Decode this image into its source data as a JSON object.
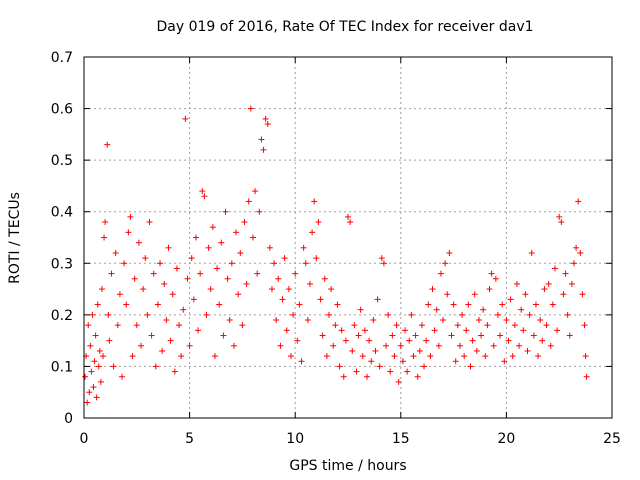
{
  "chart_data": {
    "type": "scatter",
    "title": "Day 019 of 2016, Rate Of TEC Index for receiver dav1",
    "xlabel": "GPS time / hours",
    "ylabel": "ROTI / TECUs",
    "xlim": [
      0,
      25
    ],
    "ylim": [
      0,
      0.7
    ],
    "xticks": [
      0,
      5,
      10,
      15,
      20,
      25
    ],
    "xtick_labels": [
      "0",
      "5",
      "10",
      "15",
      "20",
      "25"
    ],
    "yticks": [
      0,
      0.1,
      0.2,
      0.3,
      0.4,
      0.5,
      0.6,
      0.7
    ],
    "ytick_labels": [
      "0",
      "0.1",
      "0.2",
      "0.3",
      "0.4",
      "0.5",
      "0.6",
      "0.7"
    ],
    "grid": true,
    "marker": "plus",
    "marker_color": "#ff0000",
    "series": [
      {
        "name": "ROTI",
        "points": [
          [
            0.05,
            0.08
          ],
          [
            0.1,
            0.12
          ],
          [
            0.15,
            0.03
          ],
          [
            0.2,
            0.18
          ],
          [
            0.25,
            0.05
          ],
          [
            0.3,
            0.14
          ],
          [
            0.35,
            0.09
          ],
          [
            0.4,
            0.2
          ],
          [
            0.45,
            0.06
          ],
          [
            0.5,
            0.11
          ],
          [
            0.55,
            0.16
          ],
          [
            0.6,
            0.04
          ],
          [
            0.65,
            0.22
          ],
          [
            0.7,
            0.1
          ],
          [
            0.75,
            0.13
          ],
          [
            0.8,
            0.07
          ],
          [
            0.85,
            0.25
          ],
          [
            0.9,
            0.12
          ],
          [
            0.95,
            0.35
          ],
          [
            1.0,
            0.38
          ],
          [
            1.1,
            0.53
          ],
          [
            1.15,
            0.2
          ],
          [
            1.2,
            0.15
          ],
          [
            1.3,
            0.28
          ],
          [
            1.4,
            0.1
          ],
          [
            1.5,
            0.32
          ],
          [
            1.6,
            0.18
          ],
          [
            1.7,
            0.24
          ],
          [
            1.8,
            0.08
          ],
          [
            1.9,
            0.3
          ],
          [
            2.0,
            0.22
          ],
          [
            2.1,
            0.36
          ],
          [
            2.2,
            0.39
          ],
          [
            2.3,
            0.12
          ],
          [
            2.4,
            0.27
          ],
          [
            2.5,
            0.18
          ],
          [
            2.6,
            0.34
          ],
          [
            2.7,
            0.14
          ],
          [
            2.8,
            0.25
          ],
          [
            2.9,
            0.31
          ],
          [
            3.0,
            0.2
          ],
          [
            3.1,
            0.38
          ],
          [
            3.2,
            0.16
          ],
          [
            3.3,
            0.28
          ],
          [
            3.4,
            0.1
          ],
          [
            3.5,
            0.22
          ],
          [
            3.6,
            0.3
          ],
          [
            3.7,
            0.13
          ],
          [
            3.8,
            0.26
          ],
          [
            3.9,
            0.19
          ],
          [
            4.0,
            0.33
          ],
          [
            4.1,
            0.15
          ],
          [
            4.2,
            0.24
          ],
          [
            4.3,
            0.09
          ],
          [
            4.4,
            0.29
          ],
          [
            4.5,
            0.18
          ],
          [
            4.6,
            0.12
          ],
          [
            4.7,
            0.21
          ],
          [
            4.8,
            0.58
          ],
          [
            4.9,
            0.27
          ],
          [
            5.0,
            0.14
          ],
          [
            5.1,
            0.31
          ],
          [
            5.2,
            0.23
          ],
          [
            5.3,
            0.35
          ],
          [
            5.4,
            0.17
          ],
          [
            5.5,
            0.28
          ],
          [
            5.6,
            0.44
          ],
          [
            5.7,
            0.43
          ],
          [
            5.8,
            0.2
          ],
          [
            5.9,
            0.33
          ],
          [
            6.0,
            0.25
          ],
          [
            6.1,
            0.37
          ],
          [
            6.2,
            0.12
          ],
          [
            6.3,
            0.29
          ],
          [
            6.4,
            0.22
          ],
          [
            6.5,
            0.34
          ],
          [
            6.6,
            0.16
          ],
          [
            6.7,
            0.4
          ],
          [
            6.8,
            0.27
          ],
          [
            6.9,
            0.19
          ],
          [
            7.0,
            0.3
          ],
          [
            7.1,
            0.14
          ],
          [
            7.2,
            0.36
          ],
          [
            7.3,
            0.24
          ],
          [
            7.4,
            0.32
          ],
          [
            7.5,
            0.18
          ],
          [
            7.6,
            0.38
          ],
          [
            7.7,
            0.26
          ],
          [
            7.8,
            0.42
          ],
          [
            7.9,
            0.6
          ],
          [
            8.0,
            0.35
          ],
          [
            8.1,
            0.44
          ],
          [
            8.2,
            0.28
          ],
          [
            8.3,
            0.4
          ],
          [
            8.4,
            0.54
          ],
          [
            8.5,
            0.52
          ],
          [
            8.6,
            0.58
          ],
          [
            8.7,
            0.57
          ],
          [
            8.8,
            0.33
          ],
          [
            8.9,
            0.25
          ],
          [
            9.0,
            0.3
          ],
          [
            9.1,
            0.19
          ],
          [
            9.2,
            0.27
          ],
          [
            9.3,
            0.14
          ],
          [
            9.4,
            0.23
          ],
          [
            9.5,
            0.31
          ],
          [
            9.6,
            0.17
          ],
          [
            9.7,
            0.25
          ],
          [
            9.8,
            0.12
          ],
          [
            9.9,
            0.2
          ],
          [
            10.0,
            0.28
          ],
          [
            10.1,
            0.15
          ],
          [
            10.2,
            0.22
          ],
          [
            10.3,
            0.11
          ],
          [
            10.4,
            0.33
          ],
          [
            10.5,
            0.3
          ],
          [
            10.6,
            0.19
          ],
          [
            10.7,
            0.26
          ],
          [
            10.8,
            0.36
          ],
          [
            10.9,
            0.42
          ],
          [
            11.0,
            0.31
          ],
          [
            11.1,
            0.38
          ],
          [
            11.2,
            0.23
          ],
          [
            11.3,
            0.16
          ],
          [
            11.4,
            0.27
          ],
          [
            11.5,
            0.12
          ],
          [
            11.6,
            0.2
          ],
          [
            11.7,
            0.25
          ],
          [
            11.8,
            0.14
          ],
          [
            11.9,
            0.18
          ],
          [
            12.0,
            0.22
          ],
          [
            12.1,
            0.1
          ],
          [
            12.2,
            0.17
          ],
          [
            12.3,
            0.08
          ],
          [
            12.4,
            0.15
          ],
          [
            12.5,
            0.39
          ],
          [
            12.6,
            0.38
          ],
          [
            12.7,
            0.13
          ],
          [
            12.8,
            0.18
          ],
          [
            12.9,
            0.09
          ],
          [
            13.0,
            0.16
          ],
          [
            13.1,
            0.21
          ],
          [
            13.2,
            0.12
          ],
          [
            13.3,
            0.17
          ],
          [
            13.4,
            0.08
          ],
          [
            13.5,
            0.15
          ],
          [
            13.6,
            0.11
          ],
          [
            13.7,
            0.19
          ],
          [
            13.8,
            0.13
          ],
          [
            13.9,
            0.23
          ],
          [
            14.0,
            0.1
          ],
          [
            14.1,
            0.31
          ],
          [
            14.2,
            0.3
          ],
          [
            14.3,
            0.14
          ],
          [
            14.4,
            0.2
          ],
          [
            14.5,
            0.09
          ],
          [
            14.6,
            0.16
          ],
          [
            14.7,
            0.12
          ],
          [
            14.8,
            0.18
          ],
          [
            14.9,
            0.07
          ],
          [
            15.0,
            0.14
          ],
          [
            15.1,
            0.11
          ],
          [
            15.2,
            0.17
          ],
          [
            15.3,
            0.09
          ],
          [
            15.4,
            0.15
          ],
          [
            15.5,
            0.2
          ],
          [
            15.6,
            0.12
          ],
          [
            15.7,
            0.16
          ],
          [
            15.8,
            0.08
          ],
          [
            15.9,
            0.13
          ],
          [
            16.0,
            0.18
          ],
          [
            16.1,
            0.1
          ],
          [
            16.2,
            0.15
          ],
          [
            16.3,
            0.22
          ],
          [
            16.4,
            0.12
          ],
          [
            16.5,
            0.25
          ],
          [
            16.6,
            0.17
          ],
          [
            16.7,
            0.21
          ],
          [
            16.8,
            0.14
          ],
          [
            16.9,
            0.28
          ],
          [
            17.0,
            0.19
          ],
          [
            17.1,
            0.3
          ],
          [
            17.2,
            0.24
          ],
          [
            17.3,
            0.32
          ],
          [
            17.4,
            0.16
          ],
          [
            17.5,
            0.22
          ],
          [
            17.6,
            0.11
          ],
          [
            17.7,
            0.18
          ],
          [
            17.8,
            0.14
          ],
          [
            17.9,
            0.2
          ],
          [
            18.0,
            0.12
          ],
          [
            18.1,
            0.17
          ],
          [
            18.2,
            0.22
          ],
          [
            18.3,
            0.1
          ],
          [
            18.4,
            0.15
          ],
          [
            18.5,
            0.24
          ],
          [
            18.6,
            0.13
          ],
          [
            18.7,
            0.19
          ],
          [
            18.8,
            0.16
          ],
          [
            18.9,
            0.21
          ],
          [
            19.0,
            0.12
          ],
          [
            19.1,
            0.18
          ],
          [
            19.2,
            0.25
          ],
          [
            19.3,
            0.28
          ],
          [
            19.4,
            0.14
          ],
          [
            19.5,
            0.27
          ],
          [
            19.6,
            0.2
          ],
          [
            19.7,
            0.16
          ],
          [
            19.8,
            0.22
          ],
          [
            19.9,
            0.11
          ],
          [
            20.0,
            0.19
          ],
          [
            20.1,
            0.15
          ],
          [
            20.2,
            0.23
          ],
          [
            20.3,
            0.12
          ],
          [
            20.4,
            0.18
          ],
          [
            20.5,
            0.26
          ],
          [
            20.6,
            0.14
          ],
          [
            20.7,
            0.21
          ],
          [
            20.8,
            0.17
          ],
          [
            20.9,
            0.24
          ],
          [
            21.0,
            0.13
          ],
          [
            21.1,
            0.2
          ],
          [
            21.2,
            0.32
          ],
          [
            21.3,
            0.16
          ],
          [
            21.4,
            0.22
          ],
          [
            21.5,
            0.12
          ],
          [
            21.6,
            0.19
          ],
          [
            21.7,
            0.15
          ],
          [
            21.8,
            0.25
          ],
          [
            21.9,
            0.18
          ],
          [
            22.0,
            0.26
          ],
          [
            22.1,
            0.14
          ],
          [
            22.2,
            0.22
          ],
          [
            22.3,
            0.29
          ],
          [
            22.4,
            0.17
          ],
          [
            22.5,
            0.39
          ],
          [
            22.6,
            0.38
          ],
          [
            22.7,
            0.24
          ],
          [
            22.8,
            0.28
          ],
          [
            22.9,
            0.2
          ],
          [
            23.0,
            0.16
          ],
          [
            23.1,
            0.26
          ],
          [
            23.2,
            0.3
          ],
          [
            23.3,
            0.33
          ],
          [
            23.4,
            0.42
          ],
          [
            23.5,
            0.32
          ],
          [
            23.6,
            0.24
          ],
          [
            23.7,
            0.18
          ],
          [
            23.75,
            0.12
          ],
          [
            23.8,
            0.08
          ]
        ]
      }
    ]
  }
}
